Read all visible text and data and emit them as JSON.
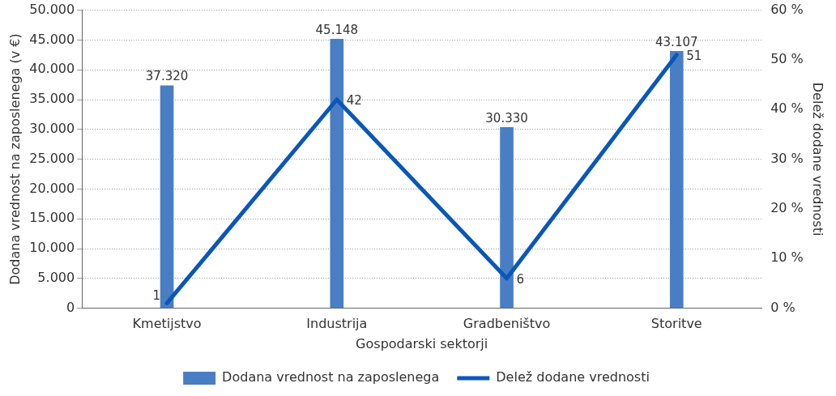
{
  "chart_data": {
    "type": "bar",
    "categories": [
      "Kmetijstvo",
      "Industrija",
      "Gradbeništvo",
      "Storitve"
    ],
    "xlabel": "Gospodarski sektorji",
    "ylabel": "Dodana vrednost na zaposlenega (v €)",
    "y2label": "Delež dodane vrednosti",
    "series": [
      {
        "name": "Dodana vrednost na zaposlenega",
        "color": "#4a7ec4",
        "values": [
          37320,
          45148,
          30330,
          43107
        ],
        "value_labels": [
          "37.320",
          "45.148",
          "30.330",
          "43.107"
        ]
      },
      {
        "name": "Delež dodane vrednosti",
        "type": "line",
        "axis": "y2",
        "color": "#0a57b8",
        "values": [
          1,
          42,
          6,
          51
        ],
        "value_labels": [
          "1",
          "42",
          "6",
          "51"
        ]
      }
    ],
    "ylim": [
      0,
      50000
    ],
    "yticks": [
      {
        "value": 0,
        "label": "0"
      },
      {
        "value": 5000,
        "label": "5.000"
      },
      {
        "value": 10000,
        "label": "10.000"
      },
      {
        "value": 15000,
        "label": "15.000"
      },
      {
        "value": 20000,
        "label": "20.000"
      },
      {
        "value": 25000,
        "label": "25.000"
      },
      {
        "value": 30000,
        "label": "30.000"
      },
      {
        "value": 35000,
        "label": "35.000"
      },
      {
        "value": 40000,
        "label": "40.000"
      },
      {
        "value": 45000,
        "label": "45.000"
      },
      {
        "value": 50000,
        "label": "50.000"
      }
    ],
    "y2lim": [
      0,
      60
    ],
    "y2ticks": [
      {
        "value": 0,
        "label": "0 %"
      },
      {
        "value": 10,
        "label": "10 %"
      },
      {
        "value": 20,
        "label": "20 %"
      },
      {
        "value": 30,
        "label": "30 %"
      },
      {
        "value": 40,
        "label": "40 %"
      },
      {
        "value": 50,
        "label": "50 %"
      },
      {
        "value": 60,
        "label": "60 %"
      }
    ],
    "grid": "y",
    "legend": "bottom",
    "marker": "none"
  }
}
